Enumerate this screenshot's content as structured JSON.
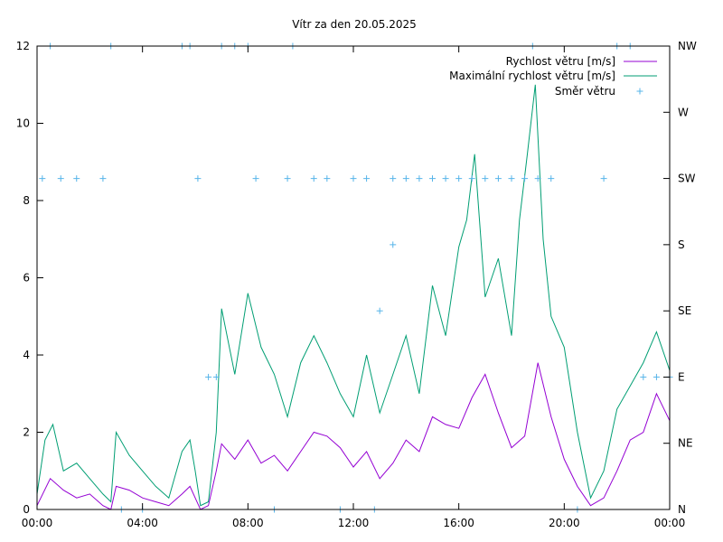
{
  "chart_data": {
    "type": "line",
    "title": "Vítr za den 20.05.2025",
    "xlabel": "",
    "ylabel": "",
    "x_range_hours": [
      0,
      24
    ],
    "x_tick_labels": [
      "00:00",
      "04:00",
      "08:00",
      "12:00",
      "16:00",
      "20:00",
      "00:00"
    ],
    "ylim": [
      0,
      12
    ],
    "y_tick_labels": [
      "0",
      "2",
      "4",
      "6",
      "8",
      "10",
      "12"
    ],
    "y2_tick_labels": [
      "N",
      "NE",
      "E",
      "SE",
      "S",
      "SW",
      "W",
      "NW"
    ],
    "legend_position": "top-right",
    "grid": false,
    "colors": {
      "speed": "#9400d3",
      "gust": "#009e73",
      "direction": "#56b4e9"
    },
    "series": [
      {
        "name": "Rychlost větru [m/s]",
        "style": "line",
        "x_hours": [
          0,
          0.5,
          1,
          1.5,
          2,
          2.5,
          2.8,
          3,
          3.5,
          4,
          4.5,
          5,
          5.5,
          5.8,
          6,
          6.2,
          6.5,
          6.8,
          7,
          7.5,
          8,
          8.5,
          9,
          9.5,
          10,
          10.5,
          11,
          11.5,
          12,
          12.5,
          13,
          13.5,
          14,
          14.5,
          15,
          15.5,
          16,
          16.5,
          17,
          17.5,
          18,
          18.5,
          19,
          19.5,
          20,
          20.5,
          21,
          21.5,
          22,
          22.5,
          23,
          23.5,
          24
        ],
        "values": [
          0.1,
          0.8,
          0.5,
          0.3,
          0.4,
          0.1,
          0,
          0.6,
          0.5,
          0.3,
          0.2,
          0.1,
          0.4,
          0.6,
          0.3,
          0,
          0.1,
          1,
          1.7,
          1.3,
          1.8,
          1.2,
          1.4,
          1.0,
          1.5,
          2.0,
          1.9,
          1.6,
          1.1,
          1.5,
          0.8,
          1.2,
          1.8,
          1.5,
          2.4,
          2.2,
          2.1,
          2.9,
          3.5,
          2.5,
          1.6,
          1.9,
          3.8,
          2.4,
          1.3,
          0.6,
          0.1,
          0.3,
          1.0,
          1.8,
          2.0,
          3.0,
          2.3
        ]
      },
      {
        "name": "Maximální rychlost větru [m/s]",
        "style": "line",
        "x_hours": [
          0,
          0.3,
          0.6,
          1,
          1.5,
          2,
          2.5,
          2.8,
          3,
          3.5,
          4,
          4.5,
          5,
          5.5,
          5.8,
          6,
          6.2,
          6.5,
          6.8,
          7,
          7.5,
          8,
          8.5,
          9,
          9.5,
          10,
          10.5,
          11,
          11.5,
          12,
          12.5,
          13,
          13.5,
          14,
          14.5,
          15,
          15.5,
          16,
          16.3,
          16.6,
          17,
          17.5,
          18,
          18.3,
          18.6,
          18.9,
          19.2,
          19.5,
          20,
          20.5,
          21,
          21.5,
          22,
          22.5,
          23,
          23.5,
          24
        ],
        "values": [
          0.4,
          1.8,
          2.2,
          1.0,
          1.2,
          0.8,
          0.4,
          0.2,
          2.0,
          1.4,
          1.0,
          0.6,
          0.3,
          1.5,
          1.8,
          1.0,
          0.1,
          0.2,
          2.0,
          5.2,
          3.5,
          5.6,
          4.2,
          3.5,
          2.4,
          3.8,
          4.5,
          3.8,
          3.0,
          2.4,
          4.0,
          2.5,
          3.5,
          4.5,
          3.0,
          5.8,
          4.5,
          6.8,
          7.5,
          9.2,
          5.5,
          6.5,
          4.5,
          7.5,
          9.2,
          11.0,
          7.0,
          5.0,
          4.2,
          2.0,
          0.3,
          1.0,
          2.6,
          3.2,
          3.8,
          4.6,
          3.6
        ]
      },
      {
        "name": "Směr větru",
        "style": "points",
        "axis": "right",
        "x_hours": [
          0.2,
          0.5,
          0.9,
          1.5,
          2.5,
          2.8,
          5.5,
          5.8,
          6.1,
          7.0,
          7.5,
          8.0,
          8.3,
          9.5,
          9.7,
          10.5,
          11.0,
          12.0,
          12.5,
          13.5,
          14.0,
          14.5,
          15.0,
          15.5,
          16.0,
          16.5,
          17.0,
          17.5,
          18.0,
          18.5,
          18.8,
          19.0,
          19.5,
          20.5,
          21.5,
          22.0,
          22.5,
          23.0,
          23.5,
          24.0,
          6.5,
          6.8,
          13.0,
          13.5,
          3.2,
          4.0,
          9.0,
          11.5,
          12.8
        ],
        "values": [
          5,
          7,
          5,
          5,
          5,
          7,
          7,
          7,
          5,
          7,
          7,
          7,
          5,
          5,
          7,
          5,
          5,
          5,
          5,
          5,
          5,
          5,
          5,
          5,
          5,
          5,
          5,
          5,
          5,
          5,
          7,
          5,
          5,
          0,
          5,
          7,
          7,
          2,
          2,
          2,
          2,
          2,
          3,
          4,
          0,
          0,
          0,
          0,
          0
        ]
      }
    ]
  }
}
